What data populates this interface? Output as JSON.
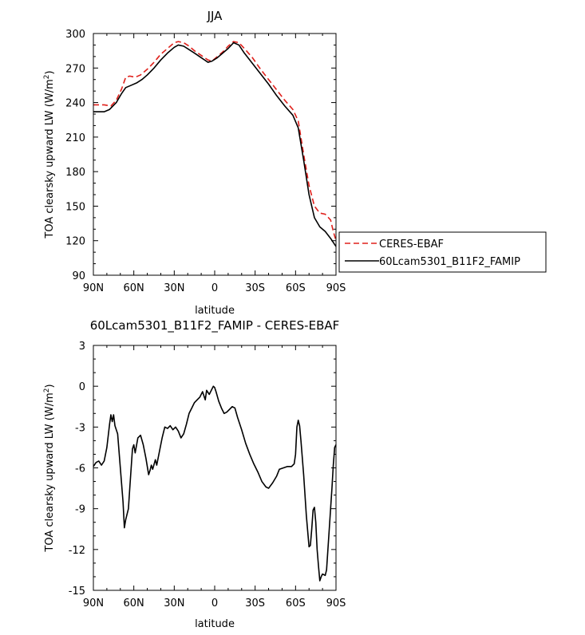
{
  "chart_data": [
    {
      "type": "line",
      "title": "JJA",
      "xlabel": "latitude",
      "ylabel_main": "TOA clearsky upward LW (W/m",
      "ylabel_sup": "2",
      "ylabel_end": ")",
      "xlim": [
        90,
        -90
      ],
      "ylim": [
        90,
        300
      ],
      "x_ticks": [
        90,
        60,
        30,
        0,
        -30,
        -60,
        -90
      ],
      "x_tick_labels": [
        "90N",
        "60N",
        "30N",
        "0",
        "30S",
        "60S",
        "90S"
      ],
      "y_ticks": [
        90,
        120,
        150,
        180,
        210,
        240,
        270,
        300
      ],
      "y_tick_labels": [
        "90",
        "120",
        "150",
        "180",
        "210",
        "240",
        "270",
        "300"
      ],
      "grid": false,
      "legend_position": "right",
      "series": [
        {
          "name": "CERES-EBAF",
          "color": "#e0201b",
          "dash": "dashed",
          "points": [
            [
              90,
              238
            ],
            [
              82,
              238
            ],
            [
              77,
              237
            ],
            [
              73,
              242
            ],
            [
              69,
              252
            ],
            [
              66,
              262
            ],
            [
              63,
              263
            ],
            [
              59,
              262
            ],
            [
              55,
              264
            ],
            [
              50,
              269
            ],
            [
              45,
              275
            ],
            [
              40,
              282
            ],
            [
              35,
              287
            ],
            [
              30,
              292
            ],
            [
              27,
              293
            ],
            [
              23,
              292
            ],
            [
              19,
              289
            ],
            [
              15,
              285
            ],
            [
              10,
              281
            ],
            [
              5,
              277
            ],
            [
              2,
              276
            ],
            [
              -2,
              280
            ],
            [
              -6,
              284
            ],
            [
              -10,
              289
            ],
            [
              -14,
              293
            ],
            [
              -18,
              292
            ],
            [
              -22,
              287
            ],
            [
              -28,
              279
            ],
            [
              -34,
              269
            ],
            [
              -40,
              260
            ],
            [
              -46,
              251
            ],
            [
              -52,
              242
            ],
            [
              -58,
              234
            ],
            [
              -62,
              224
            ],
            [
              -66,
              195
            ],
            [
              -70,
              168
            ],
            [
              -74,
              150
            ],
            [
              -78,
              144
            ],
            [
              -82,
              143
            ],
            [
              -86,
              138
            ],
            [
              -88,
              128
            ],
            [
              -90,
              120
            ]
          ]
        },
        {
          "name": "60Lcam5301_B11F2_FAMIP",
          "color": "#000000",
          "dash": "solid",
          "points": [
            [
              90,
              232
            ],
            [
              82,
              232
            ],
            [
              78,
              234
            ],
            [
              73,
              240
            ],
            [
              69,
              248
            ],
            [
              66,
              253
            ],
            [
              62,
              255
            ],
            [
              58,
              257
            ],
            [
              54,
              260
            ],
            [
              50,
              264
            ],
            [
              45,
              270
            ],
            [
              40,
              277
            ],
            [
              35,
              283
            ],
            [
              30,
              288
            ],
            [
              27,
              290
            ],
            [
              23,
              289
            ],
            [
              19,
              286
            ],
            [
              15,
              283
            ],
            [
              10,
              279
            ],
            [
              5,
              275
            ],
            [
              2,
              276
            ],
            [
              -2,
              279
            ],
            [
              -6,
              283
            ],
            [
              -10,
              287
            ],
            [
              -14,
              292
            ],
            [
              -18,
              290
            ],
            [
              -22,
              283
            ],
            [
              -28,
              274
            ],
            [
              -34,
              265
            ],
            [
              -40,
              256
            ],
            [
              -46,
              246
            ],
            [
              -52,
              237
            ],
            [
              -58,
              229
            ],
            [
              -62,
              218
            ],
            [
              -66,
              190
            ],
            [
              -70,
              160
            ],
            [
              -74,
              140
            ],
            [
              -78,
              132
            ],
            [
              -82,
              128
            ],
            [
              -86,
              122
            ],
            [
              -90,
              115
            ]
          ]
        }
      ]
    },
    {
      "type": "line",
      "title": "60Lcam5301_B11F2_FAMIP - CERES-EBAF",
      "xlabel": "latitude",
      "ylabel_main": "TOA clearsky upward LW (W/m",
      "ylabel_sup": "2",
      "ylabel_end": ")",
      "xlim": [
        90,
        -90
      ],
      "ylim": [
        -15,
        3
      ],
      "x_ticks": [
        90,
        60,
        30,
        0,
        -30,
        -60,
        -90
      ],
      "x_tick_labels": [
        "90N",
        "60N",
        "30N",
        "0",
        "30S",
        "60S",
        "90S"
      ],
      "y_ticks": [
        -15,
        -12,
        -9,
        -6,
        -3,
        0,
        3
      ],
      "y_tick_labels": [
        "-15",
        "-12",
        "-9",
        "-6",
        "-3",
        "0",
        "3"
      ],
      "grid": false,
      "series": [
        {
          "name": "60Lcam5301_B11F2_FAMIP - CERES-EBAF",
          "color": "#000000",
          "dash": "solid",
          "points": [
            [
              90,
              -5.9
            ],
            [
              88,
              -5.6
            ],
            [
              86,
              -5.5
            ],
            [
              84,
              -5.8
            ],
            [
              82,
              -5.5
            ],
            [
              80,
              -4.5
            ],
            [
              78,
              -2.8
            ],
            [
              77,
              -2.1
            ],
            [
              76,
              -2.6
            ],
            [
              75,
              -2.1
            ],
            [
              74,
              -2.9
            ],
            [
              72,
              -3.5
            ],
            [
              70,
              -6.0
            ],
            [
              68,
              -8.5
            ],
            [
              67,
              -10.4
            ],
            [
              66,
              -9.8
            ],
            [
              64,
              -9.0
            ],
            [
              63,
              -7.5
            ],
            [
              61,
              -4.6
            ],
            [
              60,
              -4.3
            ],
            [
              59,
              -4.9
            ],
            [
              57,
              -3.8
            ],
            [
              55,
              -3.6
            ],
            [
              53,
              -4.3
            ],
            [
              51,
              -5.3
            ],
            [
              49,
              -6.5
            ],
            [
              48,
              -6.2
            ],
            [
              47,
              -5.8
            ],
            [
              46,
              -6.1
            ],
            [
              44,
              -5.4
            ],
            [
              43,
              -5.8
            ],
            [
              41,
              -4.8
            ],
            [
              39,
              -3.8
            ],
            [
              37,
              -3.0
            ],
            [
              35,
              -3.1
            ],
            [
              33,
              -2.9
            ],
            [
              31,
              -3.2
            ],
            [
              29,
              -3.0
            ],
            [
              27,
              -3.3
            ],
            [
              25,
              -3.8
            ],
            [
              23,
              -3.5
            ],
            [
              21,
              -2.8
            ],
            [
              19,
              -2.0
            ],
            [
              17,
              -1.6
            ],
            [
              15,
              -1.2
            ],
            [
              13,
              -1.0
            ],
            [
              11,
              -0.8
            ],
            [
              9,
              -0.4
            ],
            [
              7,
              -1.0
            ],
            [
              6,
              -0.3
            ],
            [
              4,
              -0.6
            ],
            [
              2,
              -0.2
            ],
            [
              1,
              -0.0
            ],
            [
              0,
              -0.1
            ],
            [
              -1,
              -0.4
            ],
            [
              -3,
              -1.1
            ],
            [
              -5,
              -1.6
            ],
            [
              -7,
              -2.0
            ],
            [
              -9,
              -1.9
            ],
            [
              -11,
              -1.7
            ],
            [
              -13,
              -1.5
            ],
            [
              -15,
              -1.6
            ],
            [
              -17,
              -2.3
            ],
            [
              -20,
              -3.2
            ],
            [
              -23,
              -4.2
            ],
            [
              -26,
              -5.0
            ],
            [
              -29,
              -5.7
            ],
            [
              -32,
              -6.3
            ],
            [
              -35,
              -7.0
            ],
            [
              -38,
              -7.4
            ],
            [
              -40,
              -7.5
            ],
            [
              -43,
              -7.1
            ],
            [
              -46,
              -6.6
            ],
            [
              -48,
              -6.1
            ],
            [
              -51,
              -6.0
            ],
            [
              -54,
              -5.9
            ],
            [
              -57,
              -5.9
            ],
            [
              -59,
              -5.7
            ],
            [
              -60,
              -5.0
            ],
            [
              -61,
              -3.0
            ],
            [
              -62,
              -2.5
            ],
            [
              -63,
              -2.9
            ],
            [
              -64,
              -4.0
            ],
            [
              -66,
              -6.5
            ],
            [
              -68,
              -9.5
            ],
            [
              -70,
              -11.8
            ],
            [
              -71,
              -11.7
            ],
            [
              -72,
              -10.5
            ],
            [
              -73,
              -9.1
            ],
            [
              -74,
              -8.9
            ],
            [
              -75,
              -10.0
            ],
            [
              -76,
              -12.0
            ],
            [
              -77,
              -13.2
            ],
            [
              -78,
              -14.3
            ],
            [
              -79,
              -14.0
            ],
            [
              -80,
              -13.8
            ],
            [
              -82,
              -13.9
            ],
            [
              -83,
              -13.5
            ],
            [
              -84,
              -12.0
            ],
            [
              -85,
              -10.5
            ],
            [
              -86,
              -9.0
            ],
            [
              -87,
              -7.5
            ],
            [
              -88,
              -5.8
            ],
            [
              -89,
              -4.5
            ],
            [
              -90,
              -4.3
            ]
          ]
        }
      ]
    }
  ]
}
